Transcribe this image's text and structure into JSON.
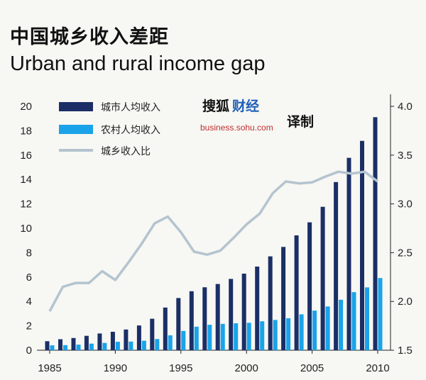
{
  "header": {
    "title_zh": "中国城乡收入差距",
    "title_en": "Urban and rural income gap"
  },
  "watermark": {
    "brand_dark": "搜狐",
    "brand_blue": "财经",
    "url": "business.sohu.com",
    "translated": "译制"
  },
  "chart_data": {
    "type": "bar",
    "x": [
      1985,
      1986,
      1987,
      1988,
      1989,
      1990,
      1991,
      1992,
      1993,
      1994,
      1995,
      1996,
      1997,
      1998,
      1999,
      2000,
      2001,
      2002,
      2003,
      2004,
      2005,
      2006,
      2007,
      2008,
      2009,
      2010
    ],
    "x_ticks": [
      "1985",
      "1990",
      "1995",
      "2000",
      "2005",
      "2010"
    ],
    "y_left_ticks": [
      "0",
      "2",
      "4",
      "6",
      "8",
      "10",
      "12",
      "14",
      "16",
      "18",
      "20"
    ],
    "y_right_ticks": [
      "1.5",
      "2.0",
      "2.5",
      "3.0",
      "3.5",
      "4.0"
    ],
    "ylim_left": [
      0,
      20
    ],
    "ylim_right": [
      1.5,
      4.0
    ],
    "legend_position": "top-left",
    "series": [
      {
        "name": "城市人均收入",
        "type": "bar",
        "axis": "left",
        "color": "#1b2f66",
        "values": [
          0.74,
          0.9,
          1.0,
          1.18,
          1.37,
          1.51,
          1.7,
          2.03,
          2.58,
          3.5,
          4.28,
          4.84,
          5.16,
          5.43,
          5.85,
          6.28,
          6.86,
          7.7,
          8.47,
          9.42,
          10.49,
          11.76,
          13.79,
          15.78,
          17.17,
          19.11
        ]
      },
      {
        "name": "农村人均收入",
        "type": "bar",
        "axis": "left",
        "color": "#1aa3e8",
        "values": [
          0.4,
          0.42,
          0.46,
          0.54,
          0.6,
          0.69,
          0.71,
          0.78,
          0.92,
          1.22,
          1.58,
          1.93,
          2.09,
          2.16,
          2.21,
          2.25,
          2.37,
          2.48,
          2.62,
          2.94,
          3.25,
          3.59,
          4.14,
          4.76,
          5.15,
          5.92
        ]
      },
      {
        "name": "城乡收入比",
        "type": "line",
        "axis": "right",
        "color": "#b4c4cf",
        "values": [
          1.9,
          2.15,
          2.19,
          2.19,
          2.31,
          2.22,
          2.4,
          2.59,
          2.8,
          2.87,
          2.71,
          2.51,
          2.48,
          2.52,
          2.65,
          2.79,
          2.9,
          3.11,
          3.23,
          3.21,
          3.22,
          3.28,
          3.33,
          3.31,
          3.33,
          3.23
        ]
      }
    ]
  }
}
